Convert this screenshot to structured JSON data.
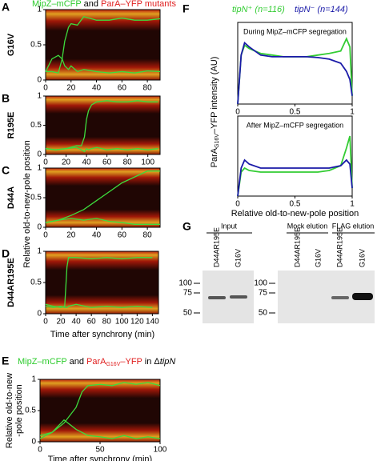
{
  "panel_letters": [
    "A",
    "B",
    "C",
    "D",
    "E",
    "F",
    "G"
  ],
  "panel_a_title": [
    "MipZ–mCFP",
    " and ",
    "ParA–YFP mutants"
  ],
  "shared_y_label": "Relative old-to-new-pole position",
  "shared_x_label": "Time after synchrony (min)",
  "panel_e_title": [
    "MipZ–mCFP",
    " and ",
    "ParA",
    "G16V",
    "–YFP",
    " in Δ",
    "tipN"
  ],
  "panel_f_ylabel": [
    "ParA",
    "G16V",
    "–YFP intensity (AU)"
  ],
  "chart_data": [
    {
      "type": "line",
      "label": "G16V",
      "x": [
        0,
        5,
        10,
        13,
        15,
        18,
        20,
        25,
        30,
        40,
        50,
        60,
        70,
        80,
        90
      ],
      "series": [
        {
          "color": "#3ddc3d",
          "values": [
            0.12,
            0.3,
            0.35,
            0.3,
            0.55,
            0.75,
            0.8,
            0.78,
            0.9,
            0.85,
            0.85,
            0.88,
            0.85,
            0.85,
            0.87
          ]
        },
        {
          "color": "#3ddc3d",
          "values": [
            0.12,
            0.12,
            0.1,
            0.3,
            0.2,
            0.15,
            0.2,
            0.12,
            0.15,
            0.12,
            0.1,
            0.12,
            0.1,
            0.13,
            0.12
          ]
        }
      ],
      "xlim": [
        0,
        90
      ],
      "ylim": [
        0,
        1
      ],
      "xticks": [
        0,
        20,
        40,
        60,
        80
      ],
      "yticks": [
        0,
        0.5,
        1
      ]
    },
    {
      "type": "line",
      "label": "R195E",
      "x": [
        0,
        10,
        20,
        30,
        35,
        38,
        40,
        42,
        45,
        50,
        60,
        70,
        80,
        90,
        100,
        110
      ],
      "series": [
        {
          "color": "#3ddc3d",
          "values": [
            0.1,
            0.08,
            0.1,
            0.15,
            0.15,
            0.3,
            0.6,
            0.75,
            0.85,
            0.9,
            0.92,
            0.9,
            0.9,
            0.92,
            0.9,
            0.9
          ]
        },
        {
          "color": "#3ddc3d",
          "values": [
            0.1,
            0.08,
            0.1,
            0.12,
            0.08,
            0.05,
            0.1,
            0.08,
            0.1,
            0.12,
            0.08,
            0.1,
            0.08,
            0.1,
            0.08,
            0.1
          ]
        }
      ],
      "xlim": [
        0,
        112
      ],
      "ylim": [
        0,
        1
      ],
      "xticks": [
        0,
        20,
        40,
        60,
        80,
        100
      ],
      "yticks": [
        0,
        0.5,
        1
      ]
    },
    {
      "type": "line",
      "label": "D44A",
      "x": [
        0,
        10,
        20,
        30,
        40,
        50,
        60,
        70,
        80,
        90
      ],
      "series": [
        {
          "color": "#3ddc3d",
          "values": [
            0.08,
            0.12,
            0.2,
            0.3,
            0.45,
            0.6,
            0.75,
            0.85,
            0.95,
            0.95
          ]
        },
        {
          "color": "#3ddc3d",
          "values": [
            0.08,
            0.12,
            0.15,
            0.12,
            0.15,
            0.1,
            0.08,
            0.05,
            0.05,
            0.05
          ]
        }
      ],
      "xlim": [
        0,
        90
      ],
      "ylim": [
        0,
        1
      ],
      "xticks": [
        0,
        20,
        40,
        60,
        80
      ],
      "yticks": [
        0,
        0.5,
        1
      ]
    },
    {
      "type": "line",
      "label": "D44AR195E",
      "x": [
        0,
        10,
        20,
        25,
        28,
        30,
        40,
        60,
        80,
        100,
        120,
        140
      ],
      "series": [
        {
          "color": "#3ddc3d",
          "values": [
            0.15,
            0.12,
            0.1,
            0.12,
            0.75,
            0.9,
            0.9,
            0.88,
            0.9,
            0.88,
            0.9,
            0.9
          ]
        },
        {
          "color": "#3ddc3d",
          "values": [
            0.12,
            0.1,
            0.12,
            0.1,
            0.1,
            0.12,
            0.15,
            0.1,
            0.12,
            0.1,
            0.12,
            0.1
          ]
        }
      ],
      "xlim": [
        0,
        148
      ],
      "ylim": [
        0,
        1
      ],
      "xticks": [
        0,
        20,
        40,
        60,
        80,
        100,
        120,
        140
      ],
      "yticks": [
        0,
        0.5,
        1
      ]
    },
    {
      "type": "line",
      "x": [
        0,
        10,
        20,
        30,
        35,
        40,
        50,
        60,
        70,
        80,
        90,
        100
      ],
      "ylabel": [
        "Relative old-to-new",
        "-pole position"
      ],
      "xlabel": "Time after synchrony (min)",
      "series": [
        {
          "color": "#3ddc3d",
          "values": [
            0.05,
            0.15,
            0.3,
            0.55,
            0.8,
            0.9,
            0.92,
            0.9,
            0.95,
            0.92,
            0.95,
            0.9
          ]
        },
        {
          "color": "#3ddc3d",
          "values": [
            0.1,
            0.15,
            0.35,
            0.2,
            0.15,
            0.1,
            0.08,
            0.05,
            0.1,
            0.05,
            0.08,
            0.05
          ]
        }
      ],
      "xlim": [
        0,
        100
      ],
      "ylim": [
        0,
        1
      ],
      "xticks": [
        0,
        50,
        100
      ],
      "yticks": [
        0,
        0.5,
        1
      ]
    },
    {
      "type": "line",
      "annotation": "During MipZ–mCFP segregation",
      "x": [
        0,
        0.03,
        0.06,
        0.1,
        0.2,
        0.3,
        0.4,
        0.5,
        0.6,
        0.7,
        0.8,
        0.9,
        0.95,
        0.98,
        1
      ],
      "series": [
        {
          "name": "tipN⁺ (n=116)",
          "color": "#33cc33",
          "values": [
            0,
            0.6,
            0.72,
            0.68,
            0.62,
            0.6,
            0.58,
            0.58,
            0.58,
            0.6,
            0.62,
            0.65,
            0.8,
            0.7,
            0.1
          ]
        },
        {
          "name": "tipN⁻ (n=144)",
          "color": "#1a1aa8",
          "values": [
            0,
            0.6,
            0.75,
            0.7,
            0.6,
            0.58,
            0.58,
            0.58,
            0.58,
            0.57,
            0.55,
            0.5,
            0.4,
            0.3,
            0.1
          ]
        }
      ],
      "xlim": [
        0,
        1
      ],
      "ylim": [
        0,
        1
      ],
      "xticks": [
        0,
        0.5,
        1
      ],
      "yticks": []
    },
    {
      "type": "line",
      "annotation": "After MipZ–mCFP segregation",
      "xlabel": "Relative old-to-new-pole position",
      "x": [
        0,
        0.03,
        0.06,
        0.1,
        0.2,
        0.3,
        0.4,
        0.5,
        0.6,
        0.7,
        0.8,
        0.9,
        0.95,
        0.98,
        1
      ],
      "series": [
        {
          "color": "#33cc33",
          "values": [
            0,
            0.3,
            0.35,
            0.32,
            0.3,
            0.3,
            0.3,
            0.3,
            0.3,
            0.3,
            0.32,
            0.38,
            0.6,
            0.75,
            0.1
          ]
        },
        {
          "color": "#1a1aa8",
          "values": [
            0,
            0.35,
            0.45,
            0.4,
            0.35,
            0.35,
            0.35,
            0.35,
            0.35,
            0.35,
            0.35,
            0.38,
            0.45,
            0.4,
            0.1
          ]
        }
      ],
      "xlim": [
        0,
        1
      ],
      "ylim": [
        0,
        1
      ],
      "xticks": [
        0,
        0.5,
        1
      ],
      "yticks": []
    }
  ],
  "blot": {
    "headers": [
      "Input",
      "Mock elution",
      "FLAG elution"
    ],
    "lanes": [
      "D44AR195E",
      "G16V",
      "D44AR195E",
      "G16V",
      "D44AR195E",
      "G16V"
    ],
    "markers_left": [
      100,
      75,
      50
    ],
    "markers_right": [
      100,
      75,
      50
    ]
  }
}
